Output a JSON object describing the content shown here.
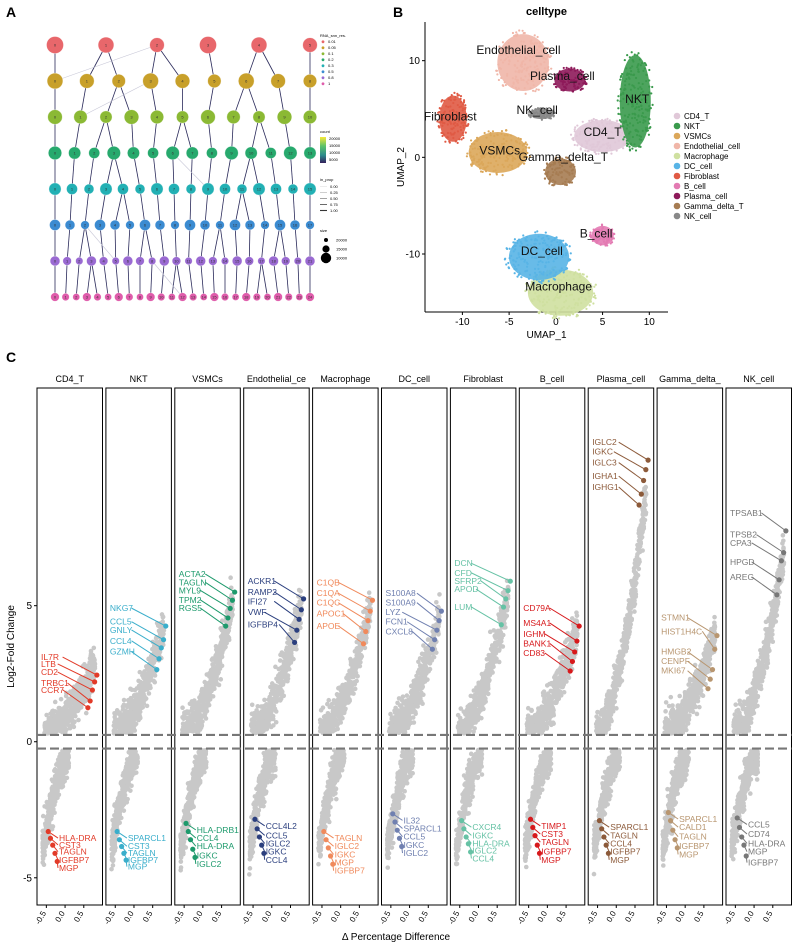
{
  "panels": {
    "a": "A",
    "b": "B",
    "c": "C"
  },
  "chart_data": [
    {
      "type": "diagram",
      "panel": "A",
      "legend": {
        "resolution_title": "RNA_snn_res.",
        "resolution_levels": [
          "0.01",
          "0.05",
          "0.1",
          "0.2",
          "0.3",
          "0.5",
          "0.8",
          "1"
        ],
        "resolution_colors": [
          "#e8676b",
          "#c8a02a",
          "#8bb934",
          "#27a96d",
          "#22b0b4",
          "#3b8bd1",
          "#9a6ad2",
          "#df5cab"
        ],
        "count_title": "count",
        "count_ticks": [
          "20000",
          "15000",
          "10000",
          "5000"
        ],
        "in_prop_title": "in_prop",
        "in_prop_ticks": [
          "0.00",
          "0.25",
          "0.50",
          "0.75",
          "1.00"
        ],
        "size_title": "size",
        "size_ticks": [
          "20000",
          "15000",
          "10000"
        ]
      },
      "levels": [
        {
          "res": "0.01",
          "nodes": [
            "0",
            "1",
            "2",
            "3",
            "4",
            "5"
          ]
        },
        {
          "res": "0.05",
          "nodes": [
            "0",
            "1",
            "2",
            "3",
            "4",
            "5",
            "6",
            "7",
            "8"
          ]
        },
        {
          "res": "0.1",
          "nodes": [
            "0",
            "1",
            "2",
            "3",
            "4",
            "5",
            "6",
            "7",
            "8",
            "9",
            "10"
          ]
        },
        {
          "res": "0.2",
          "nodes": [
            "0",
            "1",
            "2",
            "3",
            "4",
            "5",
            "6",
            "7",
            "8",
            "9",
            "10",
            "11",
            "12",
            "13"
          ]
        },
        {
          "res": "0.3",
          "nodes": [
            "0",
            "1",
            "2",
            "3",
            "4",
            "5",
            "6",
            "7",
            "8",
            "9",
            "10",
            "11",
            "12",
            "13",
            "14",
            "15"
          ]
        },
        {
          "res": "0.5",
          "nodes": [
            "0",
            "1",
            "2",
            "3",
            "4",
            "5",
            "6",
            "7",
            "8",
            "9",
            "10",
            "11",
            "12",
            "13",
            "14",
            "15",
            "16",
            "17"
          ]
        },
        {
          "res": "0.8",
          "nodes": [
            "0",
            "1",
            "2",
            "3",
            "4",
            "5",
            "6",
            "7",
            "8",
            "9",
            "10",
            "11",
            "12",
            "13",
            "14",
            "15",
            "16",
            "17",
            "18",
            "19",
            "20",
            "21"
          ]
        },
        {
          "res": "1",
          "nodes": [
            "0",
            "1",
            "2",
            "3",
            "4",
            "5",
            "6",
            "7",
            "8",
            "9",
            "10",
            "11",
            "12",
            "13",
            "14",
            "15",
            "16",
            "17",
            "18",
            "19",
            "20",
            "21",
            "22",
            "23",
            "24"
          ]
        }
      ]
    },
    {
      "type": "scatter",
      "panel": "B",
      "title": "celltype",
      "xlabel": "UMAP_1",
      "ylabel": "UMAP_2",
      "xlim": [
        -14,
        12
      ],
      "ylim": [
        -16,
        14
      ],
      "xticks": [
        -10,
        -5,
        0,
        5,
        10
      ],
      "yticks": [
        -10,
        0,
        10
      ],
      "legend_position": "right",
      "clusters": [
        {
          "name": "CD4_T",
          "label": "CD4_T",
          "color": "#e0c8d8",
          "cx": 5.0,
          "cy": 2.2,
          "rx": 3.3,
          "ry": 1.8,
          "lx": 5.0,
          "ly": 2.2
        },
        {
          "name": "NKT",
          "label": "NKT",
          "color": "#3a9a4c",
          "cx": 8.5,
          "cy": 5.8,
          "rx": 1.8,
          "ry": 5.2,
          "lx": 8.7,
          "ly": 5.6
        },
        {
          "name": "VSMCs",
          "label": "VSMCs",
          "color": "#dba75a",
          "cx": -6.2,
          "cy": 0.5,
          "rx": 3.4,
          "ry": 2.3,
          "lx": -6.0,
          "ly": 0.3
        },
        {
          "name": "Endothelial_cell",
          "label": "Endothelial_cell",
          "color": "#f0b6a8",
          "cx": -3.5,
          "cy": 9.8,
          "rx": 3.0,
          "ry": 3.2,
          "lx": -4.0,
          "ly": 10.7
        },
        {
          "name": "Macrophage",
          "label": "Macrophage",
          "color": "#cfe0a0",
          "cx": 0.5,
          "cy": -14.0,
          "rx": 3.8,
          "ry": 2.6,
          "lx": 0.3,
          "ly": -13.8
        },
        {
          "name": "DC_cell",
          "label": "DC_cell",
          "color": "#58b4e6",
          "cx": -1.8,
          "cy": -10.3,
          "rx": 3.5,
          "ry": 2.6,
          "lx": -1.5,
          "ly": -10.1
        },
        {
          "name": "Fibroblast",
          "label": "Fibroblast",
          "color": "#e05a44",
          "cx": -11.0,
          "cy": 4.0,
          "rx": 1.6,
          "ry": 2.6,
          "lx": -11.3,
          "ly": 3.8
        },
        {
          "name": "B_cell",
          "label": "B_cell",
          "color": "#e37ab2",
          "cx": 5.0,
          "cy": -8.1,
          "rx": 1.3,
          "ry": 1.1,
          "lx": 4.3,
          "ly": -8.3
        },
        {
          "name": "Plasma_cell",
          "label": "Plasma_cell",
          "color": "#8e1a5a",
          "cx": 1.5,
          "cy": 8.0,
          "rx": 1.8,
          "ry": 1.3,
          "lx": 0.7,
          "ly": 8.0
        },
        {
          "name": "Gamma_delta_T",
          "label": "Gamma_delta_T",
          "color": "#a67c52",
          "cx": 0.5,
          "cy": -1.5,
          "rx": 1.8,
          "ry": 1.5,
          "lx": 0.8,
          "ly": -0.4
        },
        {
          "name": "NK_cell",
          "label": "NK_cell",
          "color": "#888888",
          "cx": -1.5,
          "cy": 4.5,
          "rx": 1.4,
          "ry": 0.6,
          "lx": -2.0,
          "ly": 4.5
        }
      ]
    },
    {
      "type": "scatter",
      "panel": "C",
      "xlabel": "Δ Percentage Difference",
      "ylabel": "Log2-Fold Change",
      "ylim": [
        -6,
        13
      ],
      "yticks": [
        -5,
        0,
        5
      ],
      "xlim": [
        -0.75,
        1.0
      ],
      "xticks": [
        "-0.5",
        "0.0",
        "0.5"
      ],
      "threshold_lines": [
        0.25,
        -0.25
      ],
      "facets": [
        {
          "title": "CD4_T",
          "color": "#e23a28",
          "up": [
            [
              "IL7R",
              3.0
            ],
            [
              "LTB",
              2.75
            ],
            [
              "CD2",
              2.45
            ],
            [
              "TRBC1",
              2.05
            ],
            [
              "CCR7",
              1.8
            ]
          ],
          "down": [
            [
              "HLA-DRA",
              -3.65
            ],
            [
              "CST3",
              -3.9
            ],
            [
              "TAGLN",
              -4.15
            ],
            [
              "IGFBP7",
              -4.45
            ],
            [
              "MGP",
              -4.75
            ]
          ]
        },
        {
          "title": "NKT",
          "color": "#3aaecb",
          "up": [
            [
              "NKG7",
              4.8
            ],
            [
              "CCL5",
              4.3
            ],
            [
              "GNLY",
              4.0
            ],
            [
              "CCL4",
              3.6
            ],
            [
              "GZMH",
              3.2
            ]
          ],
          "down": [
            [
              "SPARCL1",
              -3.65
            ],
            [
              "CST3",
              -3.95
            ],
            [
              "TAGLN",
              -4.2
            ],
            [
              "IGFBP7",
              -4.45
            ],
            [
              "MGP",
              -4.7
            ]
          ]
        },
        {
          "title": "VSMCs",
          "color": "#1d9a6c",
          "up": [
            [
              "ACTA2",
              6.05
            ],
            [
              "TAGLN",
              5.75
            ],
            [
              "MYL9",
              5.45
            ],
            [
              "TPM2",
              5.1
            ],
            [
              "RGS5",
              4.8
            ]
          ],
          "down": [
            [
              "HLA-DRB1",
              -3.35
            ],
            [
              "CCL4",
              -3.65
            ],
            [
              "HLA-DRA",
              -3.95
            ],
            [
              "IGKC",
              -4.3
            ],
            [
              "IGLC2",
              -4.6
            ]
          ]
        },
        {
          "title": "Endothelial_ce",
          "color": "#2b3f7e",
          "up": [
            [
              "ACKR1",
              5.8
            ],
            [
              "RAMP2",
              5.4
            ],
            [
              "IFI27",
              5.05
            ],
            [
              "VWF",
              4.65
            ],
            [
              "IGFBP4",
              4.2
            ]
          ],
          "down": [
            [
              "CCL4L2",
              -3.2
            ],
            [
              "CCL5",
              -3.55
            ],
            [
              "IGLC2",
              -3.85
            ],
            [
              "IGKC",
              -4.15
            ],
            [
              "CCL4",
              -4.45
            ]
          ]
        },
        {
          "title": "Macrophage",
          "color": "#f08a5c",
          "up": [
            [
              "C1QB",
              5.75
            ],
            [
              "C1QA",
              5.35
            ],
            [
              "C1QC",
              5.0
            ],
            [
              "APOC1",
              4.6
            ],
            [
              "APOE",
              4.15
            ]
          ],
          "down": [
            [
              "TAGLN",
              -3.65
            ],
            [
              "IGLC2",
              -3.95
            ],
            [
              "IGKC",
              -4.25
            ],
            [
              "MGP",
              -4.55
            ],
            [
              "IGFBP7",
              -4.85
            ]
          ]
        },
        {
          "title": "DC_cell",
          "color": "#7080b0",
          "up": [
            [
              "S100A8",
              5.35
            ],
            [
              "S100A9",
              5.0
            ],
            [
              "LYZ",
              4.65
            ],
            [
              "FCN1",
              4.3
            ],
            [
              "CXCL8",
              3.95
            ]
          ],
          "down": [
            [
              "IL32",
              -3.0
            ],
            [
              "SPARCL1",
              -3.3
            ],
            [
              "CCL5",
              -3.6
            ],
            [
              "IGKC",
              -3.9
            ],
            [
              "IGLC2",
              -4.2
            ]
          ]
        },
        {
          "title": "Fibroblast",
          "color": "#66c2a5",
          "up": [
            [
              "DCN",
              6.45
            ],
            [
              "CFD",
              6.1
            ],
            [
              "SFRP2",
              5.8
            ],
            [
              "APOD",
              5.5
            ],
            [
              "LUM",
              4.85
            ]
          ],
          "down": [
            [
              "CXCR4",
              -3.25
            ],
            [
              "IGKC",
              -3.55
            ],
            [
              "HLA-DRA",
              -3.85
            ],
            [
              "IGLC2",
              -4.1
            ],
            [
              "CCL4",
              -4.4
            ]
          ]
        },
        {
          "title": "B_cell",
          "color": "#d7191c",
          "up": [
            [
              "CD79A",
              4.8
            ],
            [
              "MS4A1",
              4.25
            ],
            [
              "IGHM",
              3.85
            ],
            [
              "BANK1",
              3.5
            ],
            [
              "CD83",
              3.15
            ]
          ],
          "down": [
            [
              "TIMP1",
              -3.2
            ],
            [
              "CST3",
              -3.5
            ],
            [
              "TAGLN",
              -3.8
            ],
            [
              "IGFBP7",
              -4.15
            ],
            [
              "MGP",
              -4.45
            ]
          ]
        },
        {
          "title": "Plasma_cell",
          "color": "#8c5a3a",
          "up": [
            [
              "IGLC2",
              10.9
            ],
            [
              "IGKC",
              10.55
            ],
            [
              "IGLC3",
              10.15
            ],
            [
              "IGHA1",
              9.65
            ],
            [
              "IGHG1",
              9.25
            ]
          ],
          "down": [
            [
              "SPARCL1",
              -3.25
            ],
            [
              "TAGLN",
              -3.55
            ],
            [
              "CCL4",
              -3.85
            ],
            [
              "IGFBP7",
              -4.15
            ],
            [
              "MGP",
              -4.45
            ]
          ]
        },
        {
          "title": "Gamma_delta_",
          "color": "#b89670",
          "up": [
            [
              "STMN1",
              4.45
            ],
            [
              "HIST1H4C",
              3.95
            ],
            [
              "HMGB2",
              3.2
            ],
            [
              "CENPF",
              2.85
            ],
            [
              "MKI67",
              2.5
            ]
          ],
          "down": [
            [
              "SPARCL1",
              -2.95
            ],
            [
              "CALD1",
              -3.25
            ],
            [
              "TAGLN",
              -3.6
            ],
            [
              "IGFBP7",
              -3.95
            ],
            [
              "MGP",
              -4.25
            ]
          ]
        },
        {
          "title": "NK_cell",
          "color": "#777777",
          "up": [
            [
              "TPSAB1",
              8.3
            ],
            [
              "TPSB2",
              7.5
            ],
            [
              "CPA3",
              7.2
            ],
            [
              "HPGD",
              6.5
            ],
            [
              "AREG",
              5.95
            ]
          ],
          "down": [
            [
              "CCL5",
              -3.15
            ],
            [
              "CD74",
              -3.5
            ],
            [
              "HLA-DRA",
              -3.85
            ],
            [
              "MGP",
              -4.15
            ],
            [
              "IGFBP7",
              -4.55
            ]
          ]
        }
      ]
    }
  ]
}
